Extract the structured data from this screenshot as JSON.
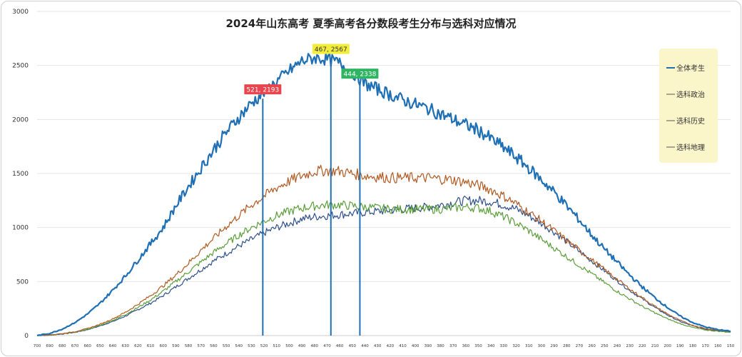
{
  "chart_data": {
    "type": "line",
    "title": "2024年山东高考 夏季高考各分数段考生分布与选科对应情况",
    "xlabel": "",
    "ylabel": "",
    "xlim": [
      700,
      150
    ],
    "ylim": [
      0,
      3000
    ],
    "y_ticks": [
      0,
      500,
      1000,
      1500,
      2000,
      2500,
      3000
    ],
    "x_ticks": [
      700,
      690,
      680,
      670,
      660,
      650,
      640,
      630,
      620,
      610,
      600,
      590,
      580,
      570,
      560,
      550,
      540,
      530,
      520,
      510,
      500,
      490,
      480,
      470,
      460,
      450,
      440,
      430,
      420,
      410,
      400,
      390,
      380,
      370,
      360,
      350,
      340,
      330,
      320,
      310,
      300,
      290,
      280,
      270,
      260,
      250,
      240,
      230,
      220,
      210,
      200,
      190,
      180,
      170,
      160,
      150
    ],
    "grid": true,
    "legend_position": "right",
    "series": [
      {
        "name": "全体考生",
        "color": "#1f6fb5",
        "width": 2.2,
        "points": [
          [
            700,
            0
          ],
          [
            690,
            20
          ],
          [
            680,
            60
          ],
          [
            670,
            120
          ],
          [
            660,
            200
          ],
          [
            650,
            300
          ],
          [
            640,
            420
          ],
          [
            630,
            550
          ],
          [
            620,
            700
          ],
          [
            610,
            850
          ],
          [
            600,
            1000
          ],
          [
            590,
            1200
          ],
          [
            580,
            1380
          ],
          [
            570,
            1550
          ],
          [
            560,
            1720
          ],
          [
            550,
            1880
          ],
          [
            540,
            2020
          ],
          [
            530,
            2150
          ],
          [
            520,
            2250
          ],
          [
            510,
            2350
          ],
          [
            500,
            2450
          ],
          [
            490,
            2540
          ],
          [
            480,
            2570
          ],
          [
            470,
            2560
          ],
          [
            460,
            2520
          ],
          [
            450,
            2440
          ],
          [
            440,
            2330
          ],
          [
            430,
            2280
          ],
          [
            420,
            2230
          ],
          [
            410,
            2180
          ],
          [
            400,
            2140
          ],
          [
            390,
            2100
          ],
          [
            380,
            2050
          ],
          [
            370,
            2000
          ],
          [
            360,
            1950
          ],
          [
            350,
            1900
          ],
          [
            340,
            1820
          ],
          [
            330,
            1740
          ],
          [
            320,
            1650
          ],
          [
            310,
            1550
          ],
          [
            300,
            1440
          ],
          [
            290,
            1330
          ],
          [
            280,
            1200
          ],
          [
            270,
            1070
          ],
          [
            260,
            930
          ],
          [
            250,
            800
          ],
          [
            240,
            680
          ],
          [
            230,
            560
          ],
          [
            220,
            450
          ],
          [
            210,
            350
          ],
          [
            200,
            260
          ],
          [
            190,
            180
          ],
          [
            180,
            120
          ],
          [
            170,
            80
          ],
          [
            160,
            55
          ],
          [
            150,
            40
          ]
        ]
      },
      {
        "name": "选科政治",
        "color": "#2e4f8a",
        "width": 1.2,
        "points": [
          [
            700,
            0
          ],
          [
            690,
            5
          ],
          [
            680,
            15
          ],
          [
            670,
            30
          ],
          [
            660,
            55
          ],
          [
            650,
            90
          ],
          [
            640,
            130
          ],
          [
            630,
            180
          ],
          [
            620,
            240
          ],
          [
            610,
            300
          ],
          [
            600,
            370
          ],
          [
            590,
            450
          ],
          [
            580,
            530
          ],
          [
            570,
            610
          ],
          [
            560,
            690
          ],
          [
            550,
            760
          ],
          [
            540,
            830
          ],
          [
            530,
            890
          ],
          [
            520,
            950
          ],
          [
            510,
            1000
          ],
          [
            500,
            1040
          ],
          [
            490,
            1080
          ],
          [
            480,
            1100
          ],
          [
            470,
            1110
          ],
          [
            460,
            1120
          ],
          [
            450,
            1130
          ],
          [
            440,
            1140
          ],
          [
            430,
            1150
          ],
          [
            420,
            1160
          ],
          [
            410,
            1170
          ],
          [
            400,
            1180
          ],
          [
            390,
            1190
          ],
          [
            380,
            1210
          ],
          [
            370,
            1230
          ],
          [
            360,
            1250
          ],
          [
            350,
            1250
          ],
          [
            340,
            1240
          ],
          [
            330,
            1210
          ],
          [
            320,
            1170
          ],
          [
            310,
            1110
          ],
          [
            300,
            1040
          ],
          [
            290,
            960
          ],
          [
            280,
            870
          ],
          [
            270,
            780
          ],
          [
            260,
            690
          ],
          [
            250,
            600
          ],
          [
            240,
            510
          ],
          [
            230,
            420
          ],
          [
            220,
            340
          ],
          [
            210,
            260
          ],
          [
            200,
            190
          ],
          [
            190,
            130
          ],
          [
            180,
            90
          ],
          [
            170,
            60
          ],
          [
            160,
            45
          ],
          [
            150,
            35
          ]
        ]
      },
      {
        "name": "选科历史",
        "color": "#b05a22",
        "width": 1.2,
        "points": [
          [
            700,
            0
          ],
          [
            690,
            6
          ],
          [
            680,
            18
          ],
          [
            670,
            36
          ],
          [
            660,
            65
          ],
          [
            650,
            105
          ],
          [
            640,
            155
          ],
          [
            630,
            215
          ],
          [
            620,
            290
          ],
          [
            610,
            370
          ],
          [
            600,
            460
          ],
          [
            590,
            560
          ],
          [
            580,
            670
          ],
          [
            570,
            790
          ],
          [
            560,
            900
          ],
          [
            550,
            1010
          ],
          [
            540,
            1110
          ],
          [
            530,
            1210
          ],
          [
            520,
            1290
          ],
          [
            510,
            1370
          ],
          [
            500,
            1430
          ],
          [
            490,
            1480
          ],
          [
            480,
            1520
          ],
          [
            470,
            1530
          ],
          [
            460,
            1520
          ],
          [
            450,
            1500
          ],
          [
            440,
            1480
          ],
          [
            430,
            1470
          ],
          [
            420,
            1460
          ],
          [
            410,
            1460
          ],
          [
            400,
            1460
          ],
          [
            390,
            1460
          ],
          [
            380,
            1450
          ],
          [
            370,
            1440
          ],
          [
            360,
            1420
          ],
          [
            350,
            1390
          ],
          [
            340,
            1350
          ],
          [
            330,
            1290
          ],
          [
            320,
            1220
          ],
          [
            310,
            1140
          ],
          [
            300,
            1060
          ],
          [
            290,
            970
          ],
          [
            280,
            880
          ],
          [
            270,
            790
          ],
          [
            260,
            700
          ],
          [
            250,
            610
          ],
          [
            240,
            520
          ],
          [
            230,
            430
          ],
          [
            220,
            350
          ],
          [
            210,
            270
          ],
          [
            200,
            200
          ],
          [
            190,
            140
          ],
          [
            180,
            95
          ],
          [
            170,
            65
          ],
          [
            160,
            48
          ],
          [
            150,
            38
          ]
        ]
      },
      {
        "name": "选科地理",
        "color": "#5a9e3a",
        "width": 1.2,
        "points": [
          [
            700,
            0
          ],
          [
            690,
            5
          ],
          [
            680,
            16
          ],
          [
            670,
            32
          ],
          [
            660,
            58
          ],
          [
            650,
            95
          ],
          [
            640,
            140
          ],
          [
            630,
            195
          ],
          [
            620,
            260
          ],
          [
            610,
            330
          ],
          [
            600,
            410
          ],
          [
            590,
            500
          ],
          [
            580,
            590
          ],
          [
            570,
            680
          ],
          [
            560,
            770
          ],
          [
            550,
            850
          ],
          [
            540,
            930
          ],
          [
            530,
            1000
          ],
          [
            520,
            1060
          ],
          [
            510,
            1110
          ],
          [
            500,
            1150
          ],
          [
            490,
            1180
          ],
          [
            480,
            1200
          ],
          [
            470,
            1210
          ],
          [
            460,
            1210
          ],
          [
            450,
            1200
          ],
          [
            440,
            1190
          ],
          [
            430,
            1180
          ],
          [
            420,
            1170
          ],
          [
            410,
            1170
          ],
          [
            400,
            1170
          ],
          [
            390,
            1170
          ],
          [
            380,
            1170
          ],
          [
            370,
            1180
          ],
          [
            360,
            1190
          ],
          [
            350,
            1180
          ],
          [
            340,
            1150
          ],
          [
            330,
            1100
          ],
          [
            320,
            1040
          ],
          [
            310,
            970
          ],
          [
            300,
            890
          ],
          [
            290,
            810
          ],
          [
            280,
            730
          ],
          [
            270,
            650
          ],
          [
            260,
            570
          ],
          [
            250,
            490
          ],
          [
            240,
            410
          ],
          [
            230,
            340
          ],
          [
            220,
            270
          ],
          [
            210,
            210
          ],
          [
            200,
            155
          ],
          [
            190,
            110
          ],
          [
            180,
            75
          ],
          [
            170,
            52
          ],
          [
            160,
            40
          ],
          [
            150,
            30
          ]
        ]
      }
    ],
    "markers": [
      {
        "x": 521,
        "y": 2193,
        "label": "521, 2193",
        "box_color": "#e8454f",
        "text_color": "#ffffff"
      },
      {
        "x": 467,
        "y": 2567,
        "label": "467, 2567",
        "box_color": "#f2ec3a",
        "text_color": "#333333"
      },
      {
        "x": 444,
        "y": 2338,
        "label": "444, 2338",
        "box_color": "#2fb562",
        "text_color": "#ffffff"
      }
    ],
    "legend": [
      "全体考生",
      "选科政治",
      "选科历史",
      "选科地理"
    ]
  }
}
